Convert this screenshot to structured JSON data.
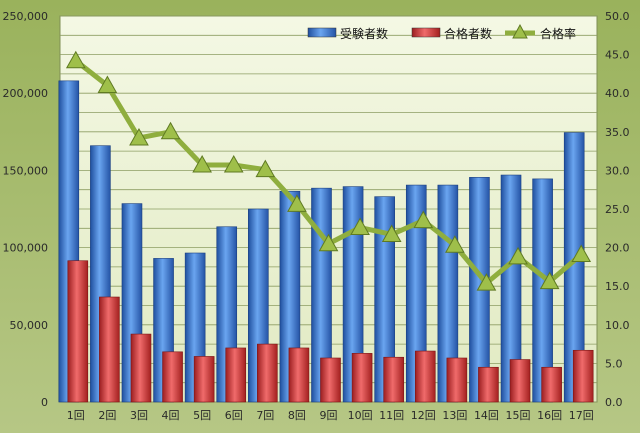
{
  "chart_data": {
    "type": "bar",
    "categories": [
      "1回",
      "2回",
      "3回",
      "4回",
      "5回",
      "6回",
      "7回",
      "8回",
      "9回",
      "10回",
      "11回",
      "12回",
      "13回",
      "14回",
      "15回",
      "16回",
      "17回"
    ],
    "series": [
      {
        "name": "受験者数",
        "axis": "left",
        "kind": "bar",
        "color": "#3f7fd4",
        "values": [
          208000,
          166000,
          128500,
          93000,
          96500,
          113500,
          125000,
          136500,
          138500,
          139500,
          133000,
          140500,
          140500,
          145500,
          147000,
          144500,
          174500
        ]
      },
      {
        "name": "合格者数",
        "axis": "left",
        "kind": "bar",
        "color": "#d8383a",
        "values": [
          91500,
          68000,
          44000,
          32500,
          29500,
          35000,
          37500,
          35000,
          28500,
          31500,
          29000,
          33000,
          28500,
          22500,
          27500,
          22500,
          33500
        ]
      },
      {
        "name": "合格率",
        "axis": "right",
        "kind": "line",
        "color": "#8fae3e",
        "values": [
          44.2,
          41.0,
          34.2,
          35.0,
          30.7,
          30.7,
          30.1,
          25.6,
          20.5,
          22.6,
          21.7,
          23.5,
          20.3,
          15.4,
          18.8,
          15.6,
          19.1
        ]
      }
    ],
    "ylim_left": [
      0,
      250000
    ],
    "yticks_left": [
      "0",
      "50,000",
      "100,000",
      "150,000",
      "200,000",
      "250,000"
    ],
    "ylim_right": [
      0,
      50
    ],
    "yticks_right": [
      "0.0",
      "5.0",
      "10.0",
      "15.0",
      "20.0",
      "25.0",
      "30.0",
      "35.0",
      "40.0",
      "45.0",
      "50.0"
    ],
    "grid": true,
    "legend_position": "top-right"
  }
}
